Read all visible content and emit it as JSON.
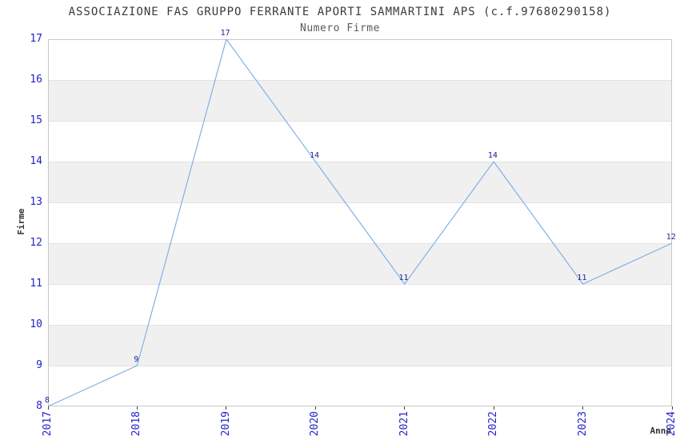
{
  "chart_data": {
    "type": "line",
    "title": "ASSOCIAZIONE FAS GRUPPO FERRANTE APORTI SAMMARTINI APS (c.f.97680290158)",
    "subtitle": "Numero Firme",
    "xlabel": "Anno",
    "ylabel": "Firme",
    "x": [
      "2017",
      "2018",
      "2019",
      "2020",
      "2021",
      "2022",
      "2023",
      "2024"
    ],
    "series": [
      {
        "name": "Numero Firme",
        "values": [
          8,
          9,
          17,
          14,
          11,
          14,
          11,
          12
        ]
      }
    ],
    "ylim": [
      8,
      17
    ],
    "ytick_step": 1,
    "yticks": [
      8,
      9,
      10,
      11,
      12,
      13,
      14,
      15,
      16,
      17
    ],
    "grid": "alternating-horizontal-bands",
    "legend_position": "none",
    "point_labels_visible": true,
    "colors": {
      "line": "#82b1e4",
      "tick_label": "#2222cc",
      "value_label": "#1f1f8c",
      "band": "#f0f0f0",
      "gridline": "#e2e2e2",
      "plot_border": "#c8c8c8",
      "title": "#3a3a3a",
      "subtitle": "#5a5a5a",
      "axis_label": "#333333",
      "tick_mark": "#444444",
      "background": "#ffffff"
    }
  }
}
